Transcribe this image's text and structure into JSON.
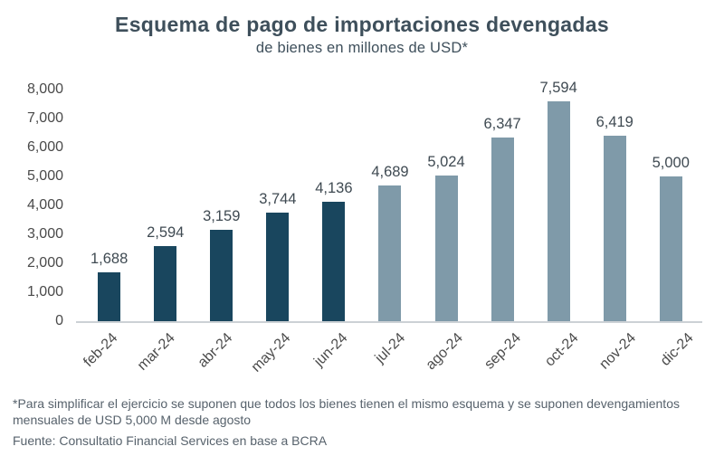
{
  "title": "Esquema de pago de importaciones devengadas",
  "subtitle": "de bienes en millones de USD*",
  "footnote": "*Para simplificar el ejercicio se suponen que todos los bienes tienen el mismo esquema y se suponen devengamientos mensuales de USD 5,000 M desde agosto",
  "source": "Fuente: Consultatio Financial Services en base a BCRA",
  "chart_data": {
    "type": "bar",
    "title": "Esquema de pago de importaciones devengadas",
    "subtitle": "de bienes en millones de USD*",
    "categories": [
      "feb-24",
      "mar-24",
      "abr-24",
      "may-24",
      "jun-24",
      "jul-24",
      "ago-24",
      "sep-24",
      "oct-24",
      "nov-24",
      "dic-24"
    ],
    "values": [
      1688,
      2594,
      3159,
      3744,
      4136,
      4689,
      5024,
      6347,
      7594,
      6419,
      5000
    ],
    "value_labels": [
      "1,688",
      "2,594",
      "3,159",
      "3,744",
      "4,136",
      "4,689",
      "5,024",
      "6,347",
      "7,594",
      "6,419",
      "5,000"
    ],
    "ylim": [
      0,
      8000
    ],
    "ytick_step": 1000,
    "ytick_labels": [
      "0",
      "1,000",
      "2,000",
      "3,000",
      "4,000",
      "5,000",
      "6,000",
      "7,000",
      "8,000"
    ],
    "grid": false,
    "legend": false,
    "bar_colors": {
      "dark": "#19465E",
      "light": "#7F9AA9"
    },
    "dark_bar_count": 5
  }
}
